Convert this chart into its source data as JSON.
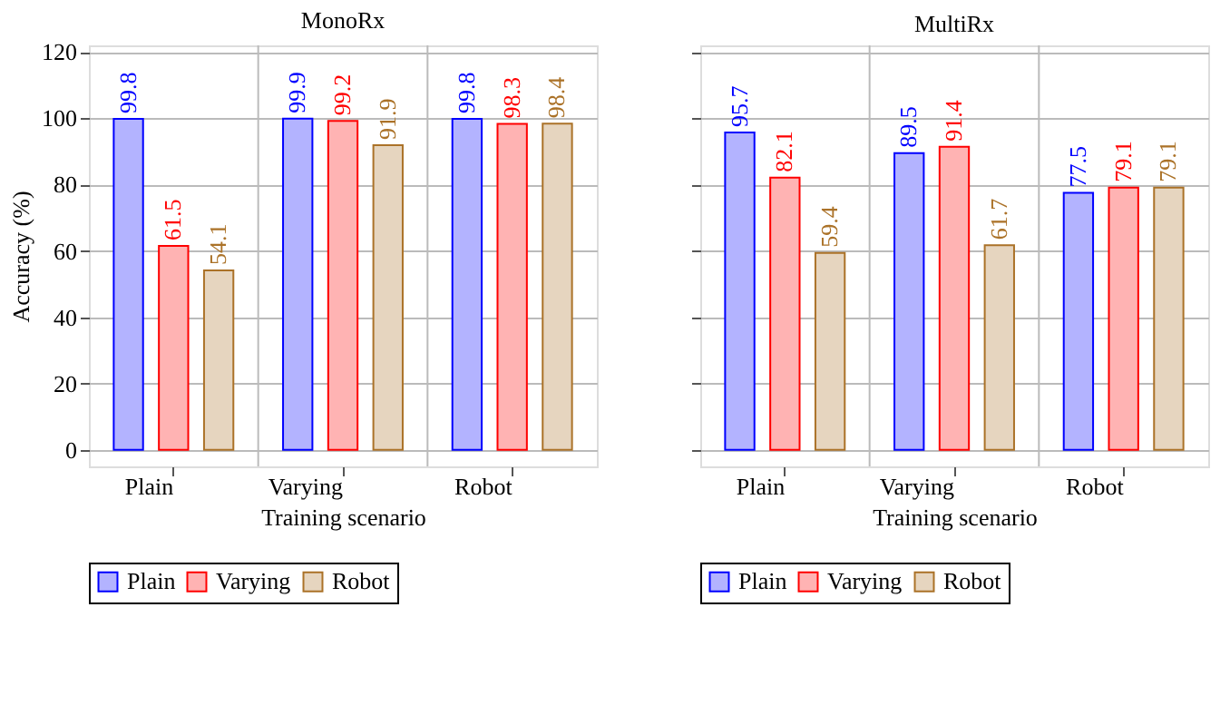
{
  "chart_data": [
    {
      "type": "bar",
      "title": "MonoRx",
      "xlabel": "Training scenario",
      "ylabel": "Accuracy (%)",
      "categories": [
        "Plain",
        "Varying",
        "Robot"
      ],
      "series": [
        {
          "name": "Plain",
          "color": "#b3b3ff",
          "values": [
            99.8,
            99.9,
            99.8
          ]
        },
        {
          "name": "Varying",
          "color": "#ffb3b3",
          "values": [
            61.5,
            99.2,
            98.3
          ]
        },
        {
          "name": "Robot",
          "color": "#e6d5bf",
          "values": [
            54.1,
            91.9,
            98.4
          ]
        }
      ],
      "ylim": [
        -5,
        122
      ],
      "yticks": [
        0,
        20,
        40,
        60,
        80,
        100,
        120
      ],
      "grid": true,
      "legend": "bottom",
      "data_labels": true
    },
    {
      "type": "bar",
      "title": "MultiRx",
      "xlabel": "Training scenario",
      "categories": [
        "Plain",
        "Varying",
        "Robot"
      ],
      "series": [
        {
          "name": "Plain",
          "color": "#b3b3ff",
          "values": [
            95.7,
            89.5,
            77.5
          ]
        },
        {
          "name": "Varying",
          "color": "#ffb3b3",
          "values": [
            82.1,
            91.4,
            79.1
          ]
        },
        {
          "name": "Robot",
          "color": "#e6d5bf",
          "values": [
            59.4,
            61.7,
            79.1
          ]
        }
      ],
      "ylim": [
        -5,
        122
      ],
      "yticks": [
        0,
        20,
        40,
        60,
        80,
        100,
        120
      ],
      "grid": true,
      "legend": "bottom",
      "data_labels": true,
      "tick_labels": "x"
    }
  ]
}
